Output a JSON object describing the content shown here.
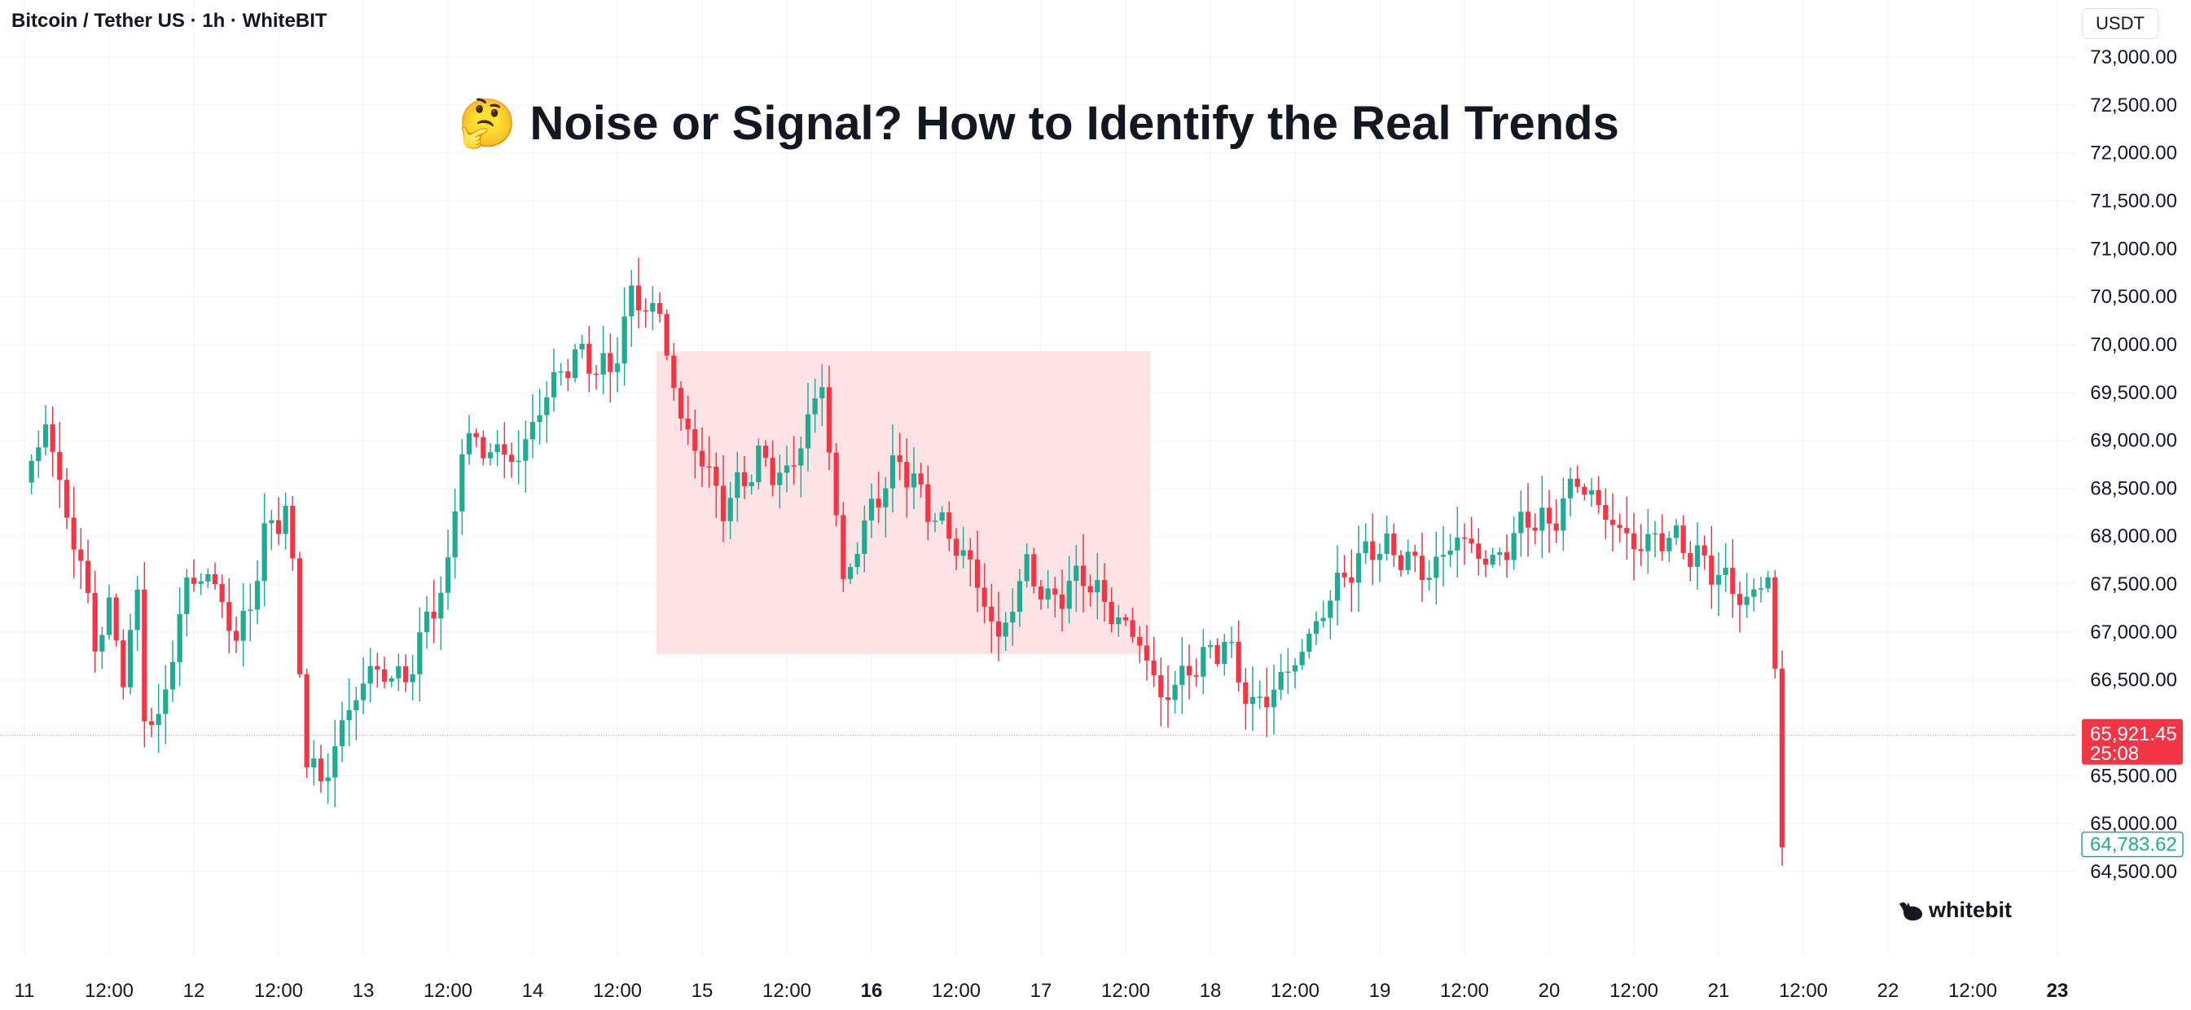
{
  "header": {
    "symbol_title": "Bitcoin / Tether US · 1h · WhiteBIT",
    "currency": "USDT"
  },
  "headline": {
    "emoji": "🤔",
    "text": "Noise or Signal? How to Identify the Real Trends"
  },
  "logo": {
    "text": "whitebit",
    "icon": "whale-logo-icon"
  },
  "colors": {
    "up": "#22ab94",
    "down": "#f23645",
    "zone_fill": "#fde3e5",
    "grid": "#f0f3fa",
    "text": "#131722"
  },
  "chart_data": {
    "type": "candlestick",
    "title": "Noise or Signal? How to Identify the Real Trends",
    "x_ticks": [
      {
        "label": "11",
        "bold": false
      },
      {
        "label": "12:00",
        "bold": false
      },
      {
        "label": "12",
        "bold": false
      },
      {
        "label": "12:00",
        "bold": false
      },
      {
        "label": "13",
        "bold": false
      },
      {
        "label": "12:00",
        "bold": false
      },
      {
        "label": "14",
        "bold": false
      },
      {
        "label": "12:00",
        "bold": false
      },
      {
        "label": "15",
        "bold": false
      },
      {
        "label": "12:00",
        "bold": false
      },
      {
        "label": "16",
        "bold": true
      },
      {
        "label": "12:00",
        "bold": false
      },
      {
        "label": "17",
        "bold": false
      },
      {
        "label": "12:00",
        "bold": false
      },
      {
        "label": "18",
        "bold": false
      },
      {
        "label": "12:00",
        "bold": false
      },
      {
        "label": "19",
        "bold": false
      },
      {
        "label": "12:00",
        "bold": false
      },
      {
        "label": "20",
        "bold": false
      },
      {
        "label": "12:00",
        "bold": false
      },
      {
        "label": "21",
        "bold": false
      },
      {
        "label": "12:00",
        "bold": false
      },
      {
        "label": "22",
        "bold": false
      },
      {
        "label": "12:00",
        "bold": false
      },
      {
        "label": "23",
        "bold": true
      }
    ],
    "x_range_hours": [
      0,
      288
    ],
    "y_ticks": [
      "73,000.00",
      "72,500.00",
      "72,000.00",
      "71,500.00",
      "71,000.00",
      "70,500.00",
      "70,000.00",
      "69,500.00",
      "69,000.00",
      "68,500.00",
      "68,000.00",
      "67,500.00",
      "67,000.00",
      "66,500.00",
      "66,000.00",
      "65,500.00",
      "65,000.00",
      "64,500.00"
    ],
    "y_tick_values": [
      73000,
      72500,
      72000,
      71500,
      71000,
      70500,
      70000,
      69500,
      69000,
      68500,
      68000,
      67500,
      67000,
      66500,
      66000,
      65500,
      65000,
      64500
    ],
    "y_range": [
      64400,
      73150
    ],
    "grid": true,
    "current_price": {
      "value": 65921.45,
      "label": "65,921.45",
      "countdown": "25:08"
    },
    "low_marker": {
      "value": 64783.62,
      "label": "64,783.62"
    },
    "zone": {
      "hour_start": 89.5,
      "hour_end": 159.5,
      "price_high": 69930,
      "price_low": 66770
    },
    "anchors": [
      [
        0,
        68500
      ],
      [
        3,
        69200
      ],
      [
        6,
        68200
      ],
      [
        8,
        67700
      ],
      [
        10,
        66900
      ],
      [
        12,
        67200
      ],
      [
        14,
        66600
      ],
      [
        16,
        67300
      ],
      [
        17,
        66200
      ],
      [
        19,
        66000
      ],
      [
        21,
        66800
      ],
      [
        23,
        67500
      ],
      [
        26,
        67600
      ],
      [
        28,
        67300
      ],
      [
        30,
        66900
      ],
      [
        32,
        67300
      ],
      [
        34,
        68000
      ],
      [
        37,
        68300
      ],
      [
        38,
        67600
      ],
      [
        40,
        65700
      ],
      [
        42,
        65400
      ],
      [
        46,
        66200
      ],
      [
        49,
        66600
      ],
      [
        54,
        66500
      ],
      [
        58,
        67300
      ],
      [
        60,
        67600
      ],
      [
        62,
        69000
      ],
      [
        66,
        68900
      ],
      [
        70,
        68800
      ],
      [
        74,
        69500
      ],
      [
        78,
        69900
      ],
      [
        83,
        69700
      ],
      [
        86,
        70500
      ],
      [
        90,
        70300
      ],
      [
        93,
        69200
      ],
      [
        96,
        68800
      ],
      [
        99,
        68300
      ],
      [
        104,
        68800
      ],
      [
        108,
        68600
      ],
      [
        113,
        69600
      ],
      [
        116,
        67500
      ],
      [
        120,
        68300
      ],
      [
        124,
        68800
      ],
      [
        128,
        68300
      ],
      [
        134,
        67700
      ],
      [
        138,
        66900
      ],
      [
        142,
        67700
      ],
      [
        145,
        67300
      ],
      [
        150,
        67600
      ],
      [
        154,
        67200
      ],
      [
        158,
        66900
      ],
      [
        161,
        66300
      ],
      [
        165,
        66600
      ],
      [
        170,
        66900
      ],
      [
        174,
        66200
      ],
      [
        177,
        66400
      ],
      [
        181,
        66800
      ],
      [
        186,
        67500
      ],
      [
        191,
        67900
      ],
      [
        195,
        67800
      ],
      [
        199,
        67600
      ],
      [
        203,
        68000
      ],
      [
        208,
        67700
      ],
      [
        213,
        68200
      ],
      [
        216,
        68100
      ],
      [
        220,
        68600
      ],
      [
        223,
        68300
      ],
      [
        228,
        67900
      ],
      [
        233,
        68000
      ],
      [
        240,
        67600
      ],
      [
        244,
        67300
      ],
      [
        247,
        67600
      ],
      [
        248,
        66600
      ],
      [
        249,
        64700
      ]
    ]
  }
}
